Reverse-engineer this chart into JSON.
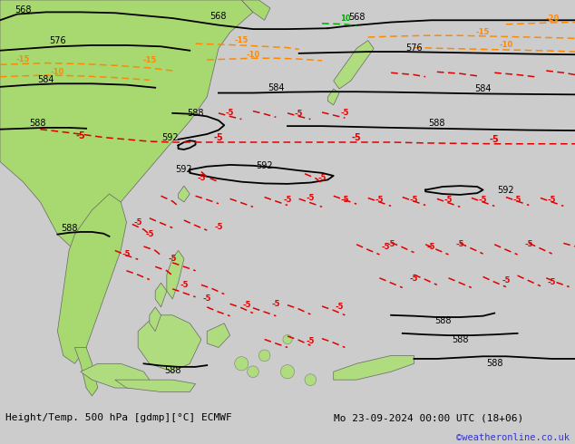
{
  "title_left": "Height/Temp. 500 hPa [gdmp][°C] ECMWF",
  "title_right": "Mo 23-09-2024 00:00 UTC (18+06)",
  "watermark": "©weatheronline.co.uk",
  "bg_color": "#cccccc",
  "land_green": "#a8d870",
  "land_green2": "#b0dc80",
  "ocean_color": "#c8c8c8",
  "z500_color": "#000000",
  "temp_red": "#dd0000",
  "temp_orange": "#ff8800",
  "temp_green": "#00aa00",
  "fig_width": 6.34,
  "fig_height": 4.9,
  "dpi": 100,
  "watermark_color": "#3333cc"
}
